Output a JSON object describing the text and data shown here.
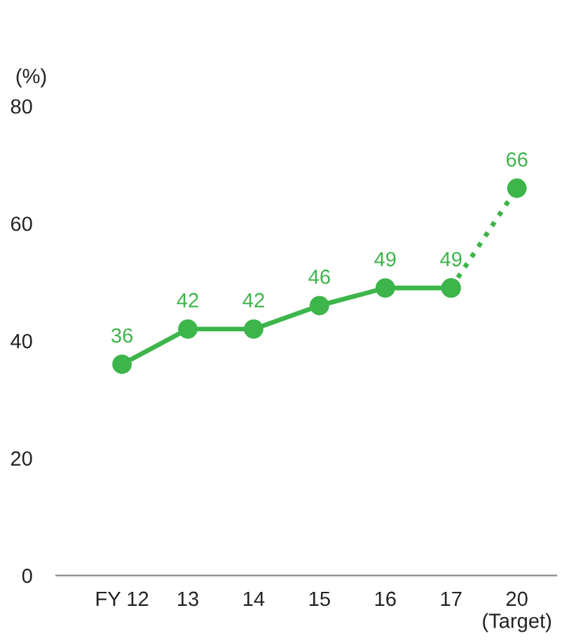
{
  "chart_data": {
    "type": "line",
    "ylabel": "(%)",
    "categories": [
      "FY 12",
      "13",
      "14",
      "15",
      "16",
      "17",
      "20\n(Target)"
    ],
    "series": [
      {
        "color": "#3db54a",
        "values": [
          36,
          42,
          42,
          46,
          49,
          49,
          null
        ],
        "line_style": "solid"
      },
      {
        "color": "#3db54a",
        "values": [
          null,
          null,
          null,
          null,
          null,
          49,
          66
        ],
        "line_style": "dotted",
        "value_labels": [
          null,
          null,
          null,
          null,
          null,
          null,
          "66"
        ]
      }
    ],
    "ylim": [
      0,
      80
    ],
    "yticks": [
      0,
      20,
      40,
      60,
      80
    ],
    "grid": false,
    "legend": false,
    "marker": "circle",
    "data_labels": true
  }
}
